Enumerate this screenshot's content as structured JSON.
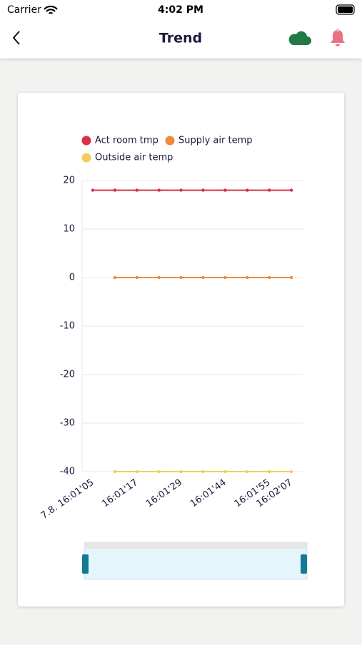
{
  "status_bar": {
    "carrier": "Carrier",
    "time": "4:02 PM"
  },
  "nav": {
    "title": "Trend"
  },
  "chart_data": {
    "type": "line",
    "categories": [
      "7.8. 16:01'05",
      null,
      "16:01'17",
      null,
      "16:01'29",
      null,
      "16:01'44",
      null,
      "16:01'55",
      "16:02'07"
    ],
    "series": [
      {
        "name": "Act room tmp",
        "color": "#d6304a",
        "values": [
          18,
          18,
          18,
          18,
          18,
          18,
          18,
          18,
          18,
          18
        ]
      },
      {
        "name": "Supply air temp",
        "color": "#ef8a3c",
        "values": [
          null,
          0,
          0,
          0,
          0,
          0,
          0,
          0,
          0,
          0
        ]
      },
      {
        "name": "Outside air temp",
        "color": "#f2cd5c",
        "values": [
          null,
          -40,
          -40,
          -40,
          -40,
          -40,
          -40,
          -40,
          -40,
          -40
        ]
      }
    ],
    "ylim": [
      -40,
      20
    ],
    "yticks": [
      20,
      10,
      0,
      -10,
      -20,
      -30,
      -40
    ],
    "grid": true
  }
}
